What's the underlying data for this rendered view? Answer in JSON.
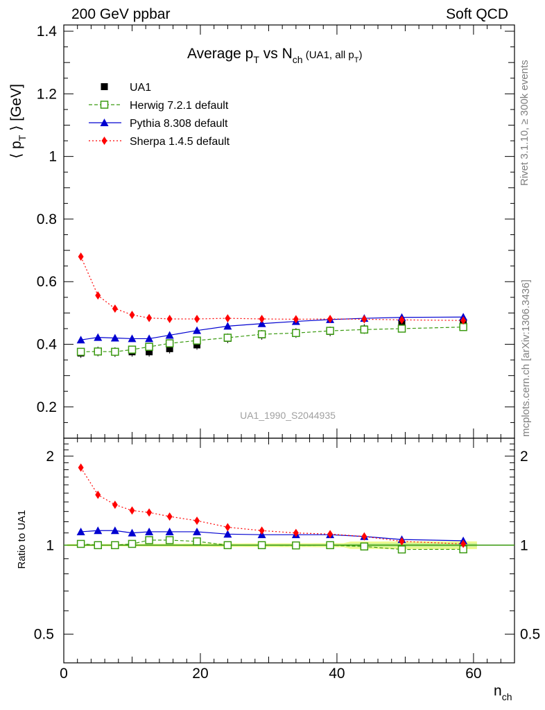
{
  "header": {
    "left": "200 GeV ppbar",
    "right": "Soft QCD"
  },
  "side_labels": {
    "top": "Rivet 3.1.10, ≥ 300k events",
    "bottom": "mcplots.cern.ch [arXiv:1306.3436]"
  },
  "chart_data": {
    "type": "line",
    "title": {
      "main": "Average p",
      "sub1": "T",
      "vs": " vs N",
      "sub2": "ch",
      "tail": " (UA1, all p",
      "sub3": "T",
      "close": ")"
    },
    "analysis_id": "UA1_1990_S2044935",
    "xlabel": "n",
    "xlabel_sub": "ch",
    "ylabel_main": "⟨ p",
    "ylabel_sub": "T",
    "ylabel_tail": " ⟩ [GeV]",
    "ylabel_ratio": "Ratio to UA1",
    "xlim": [
      0,
      66
    ],
    "ylim_main": [
      0.1,
      1.42
    ],
    "ylim_ratio": [
      0.4,
      2.3
    ],
    "x_ticks": [
      0,
      20,
      40,
      60
    ],
    "y_ticks_main": [
      0.2,
      0.4,
      0.6,
      0.8,
      1,
      1.2,
      1.4
    ],
    "y_ticks_ratio": [
      0.5,
      1,
      2
    ],
    "x": [
      2.5,
      5,
      7.5,
      10,
      12.5,
      15.5,
      19.5,
      24,
      29,
      34,
      39,
      44,
      49.5,
      58.5
    ],
    "series": [
      {
        "name": "UA1",
        "style": "data",
        "color": "#000000",
        "values": [
          0.372,
          0.377,
          0.375,
          0.376,
          0.376,
          0.386,
          0.398,
          0.419,
          0.43,
          0.436,
          0.441,
          0.449,
          0.465,
          0.47
        ],
        "ratio": [
          1,
          1,
          1,
          1,
          1,
          1,
          1,
          1,
          1,
          1,
          1,
          1,
          1,
          1
        ]
      },
      {
        "name": "Herwig 7.2.1 default",
        "style": "open-square-dashed",
        "color": "#3a9a10",
        "values": [
          0.376,
          0.377,
          0.376,
          0.383,
          0.392,
          0.403,
          0.412,
          0.421,
          0.432,
          0.436,
          0.443,
          0.447,
          0.45,
          0.455
        ],
        "ratio": [
          1.01,
          1.0,
          1.0,
          1.01,
          1.04,
          1.04,
          1.03,
          1.0,
          1.0,
          0.998,
          1.0,
          0.99,
          0.967,
          0.968
        ]
      },
      {
        "name": "Pythia 8.308 default",
        "style": "triangle-solid",
        "color": "#0000d0",
        "values": [
          0.414,
          0.422,
          0.42,
          0.418,
          0.418,
          0.429,
          0.444,
          0.458,
          0.466,
          0.473,
          0.479,
          0.483,
          0.486,
          0.487
        ],
        "ratio": [
          1.11,
          1.12,
          1.12,
          1.1,
          1.11,
          1.11,
          1.11,
          1.09,
          1.085,
          1.085,
          1.085,
          1.07,
          1.045,
          1.035
        ]
      },
      {
        "name": "Sherpa 1.4.5 default",
        "style": "diamond-dotted",
        "color": "#ff0000",
        "values": [
          0.68,
          0.556,
          0.514,
          0.494,
          0.484,
          0.481,
          0.481,
          0.483,
          0.481,
          0.48,
          0.481,
          0.48,
          0.478,
          0.476
        ],
        "ratio": [
          1.83,
          1.48,
          1.37,
          1.31,
          1.29,
          1.25,
          1.21,
          1.15,
          1.12,
          1.1,
          1.09,
          1.07,
          1.03,
          1.01
        ]
      }
    ]
  }
}
